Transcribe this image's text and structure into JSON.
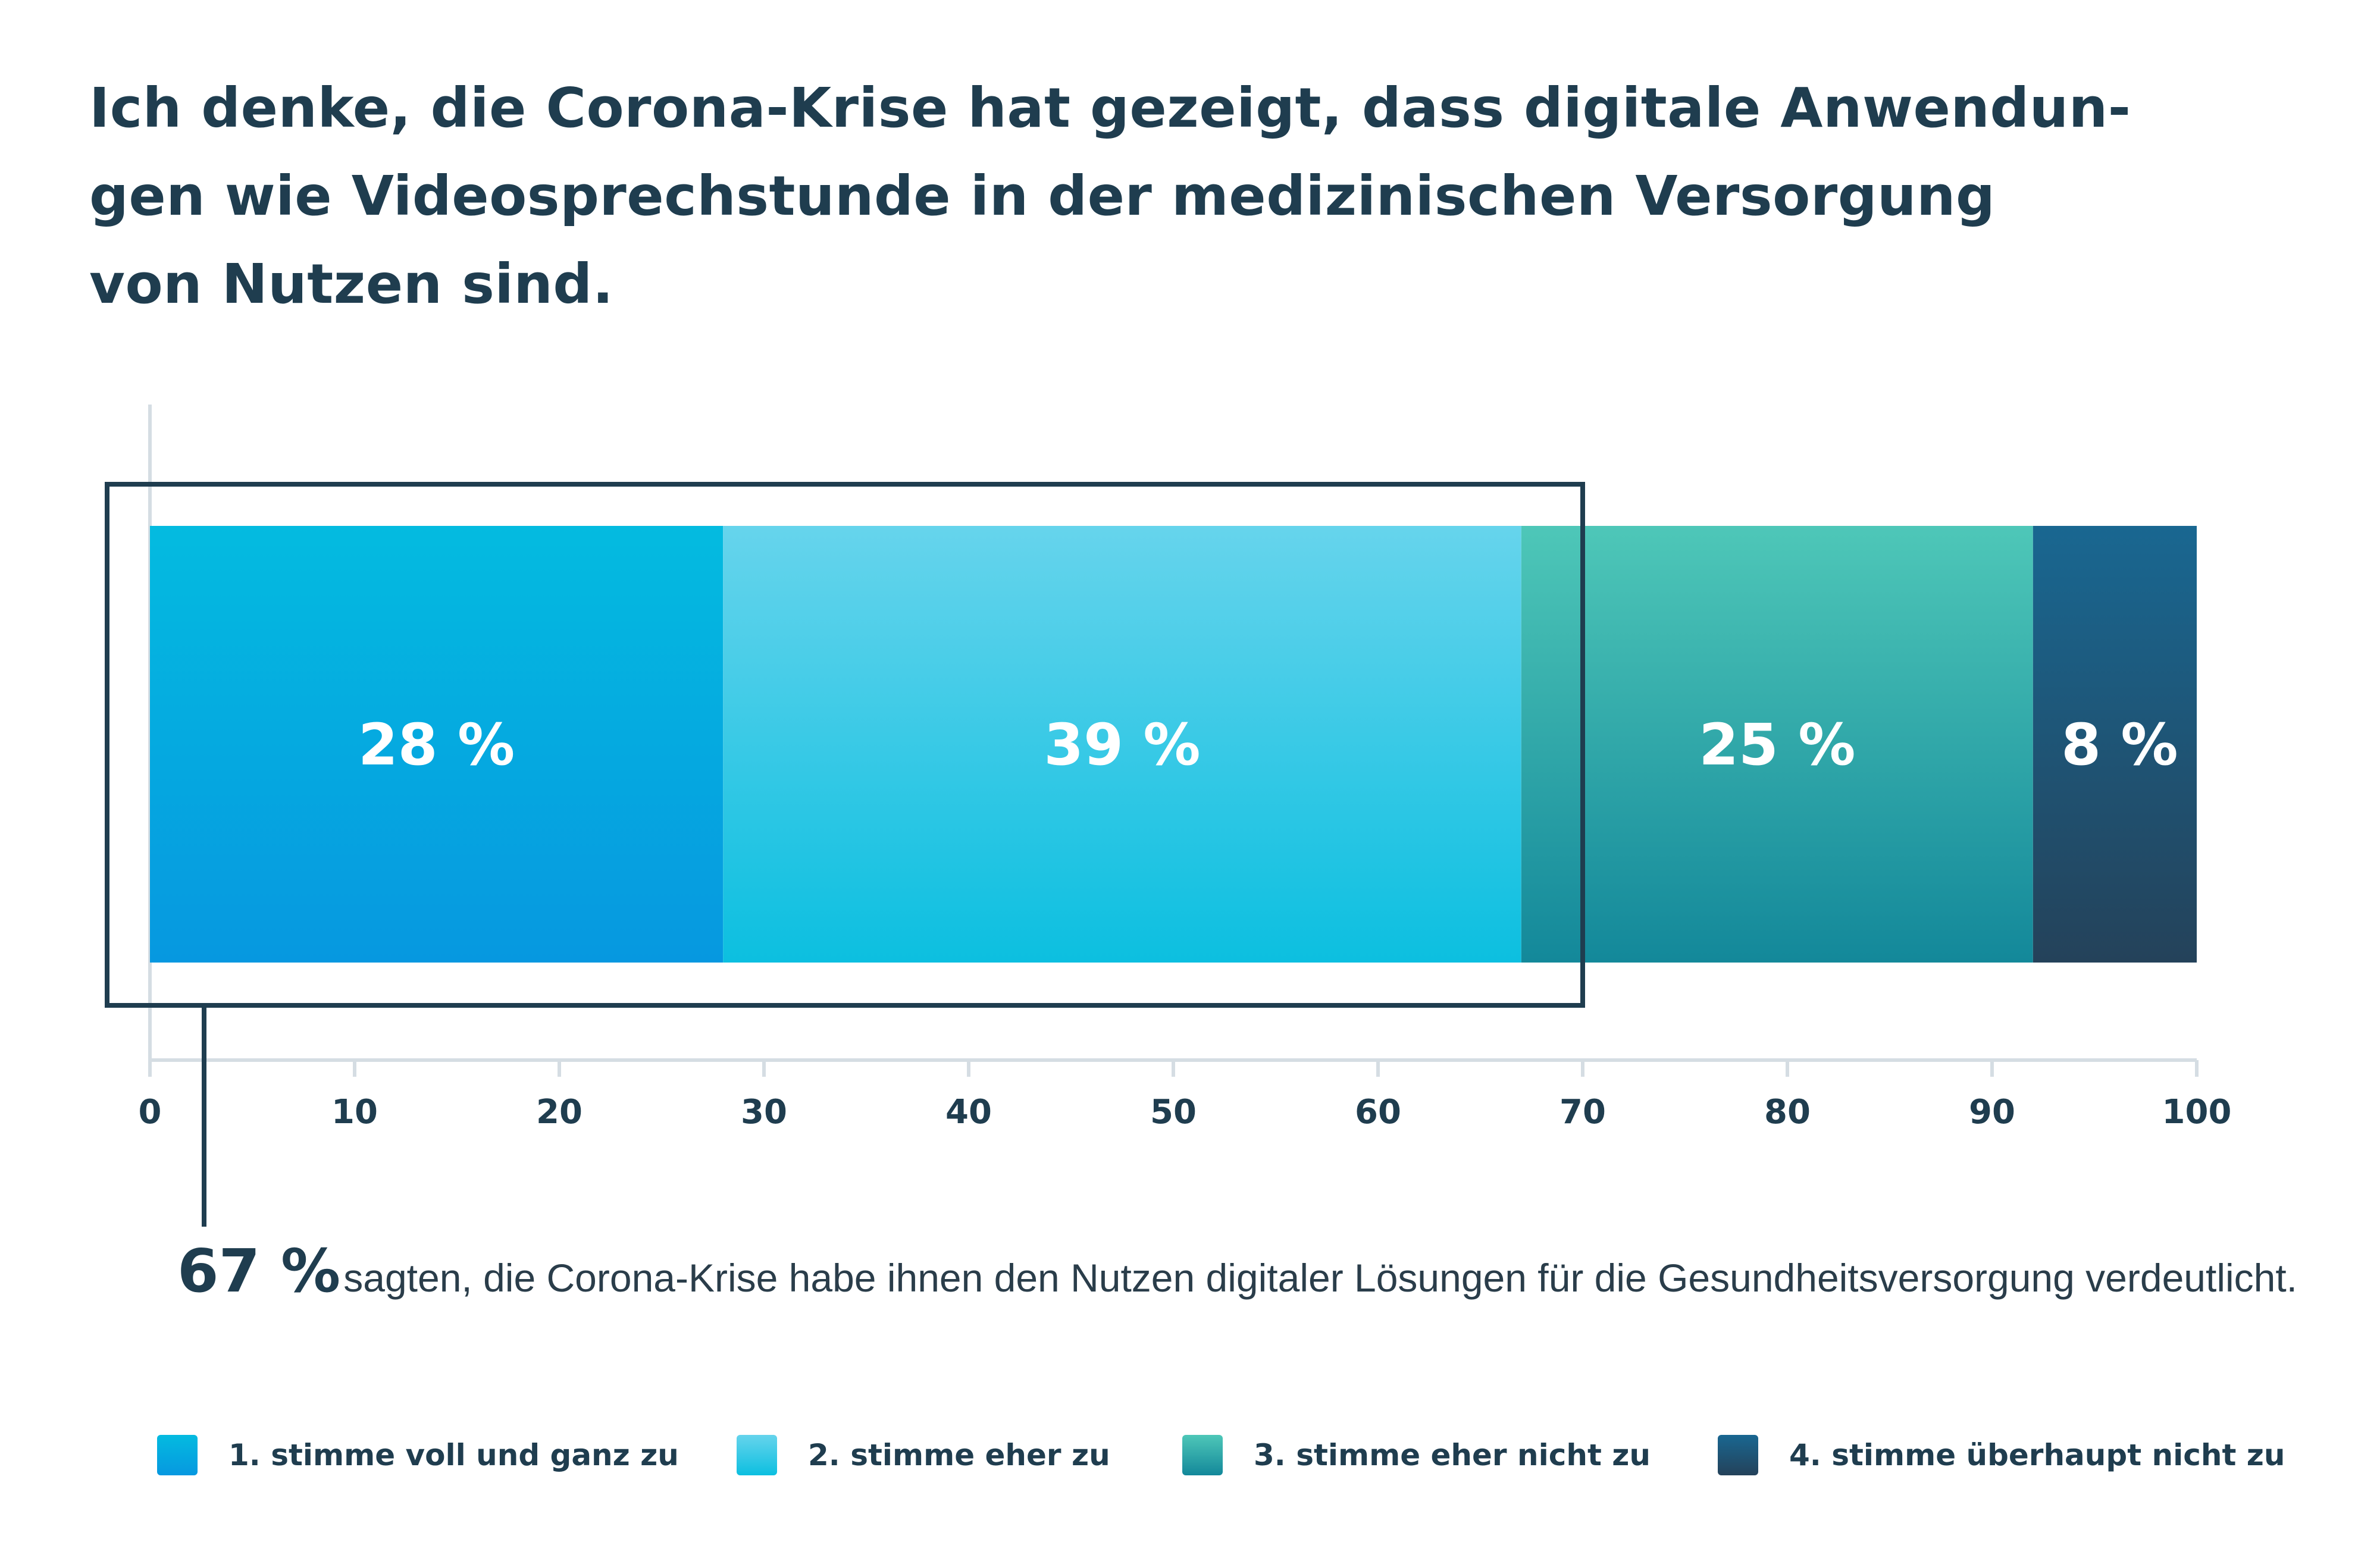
{
  "title_lines": [
    "Ich denke, die Corona-Krise hat gezeigt, dass digitale Anwendun-",
    "gen wie Videosprechstunde in der medizinischen Versorgung",
    "von Nutzen sind."
  ],
  "summary": {
    "value": "67 %",
    "text": "sagten, die Corona-Krise habe ihnen den Nutzen digitaler Lösungen für die Gesundheitsversorgung verdeutlicht."
  },
  "colors": {
    "text": "#1f3d4f",
    "axis": "#d5dde3",
    "frame": "#1f3d4f"
  },
  "chart_data": {
    "type": "bar",
    "orientation": "horizontal",
    "stacked": true,
    "xlim": [
      0,
      100
    ],
    "x_ticks": [
      "0",
      "10",
      "20",
      "30",
      "40",
      "50",
      "60",
      "70",
      "80",
      "90",
      "100"
    ],
    "grid": false,
    "legend_position": "bottom",
    "series": [
      {
        "name": "1. stimme voll und ganz zu",
        "value": 28,
        "label": "28 %",
        "color_top": "#04bbe0",
        "color_bottom": "#0698e0"
      },
      {
        "name": "2. stimme eher zu",
        "value": 39,
        "label": "39 %",
        "color_top": "#66d4ec",
        "color_bottom": "#0cbfe0"
      },
      {
        "name": "3. stimme eher nicht zu",
        "value": 25,
        "label": "25 %",
        "color_top": "#4ec7b8",
        "color_bottom": "#13889a"
      },
      {
        "name": "4. stimme überhaupt nicht zu",
        "value": 8,
        "label": "8 %",
        "color_top": "#196791",
        "color_bottom": "#24425a"
      }
    ],
    "highlight": {
      "from": 0,
      "to": 70,
      "covers": "1. + 2.",
      "value": 67
    }
  }
}
